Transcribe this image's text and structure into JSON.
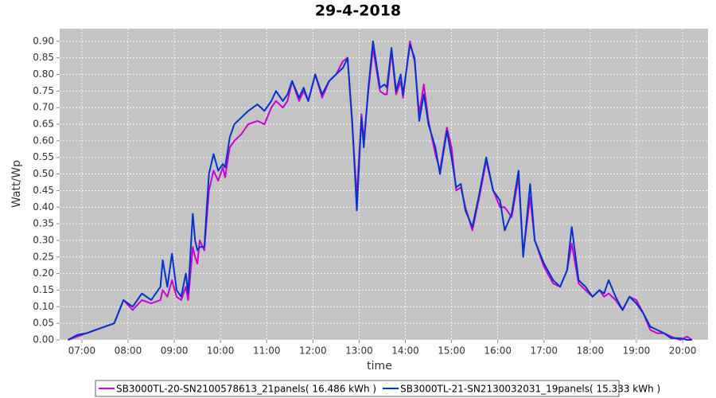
{
  "chart_data": {
    "type": "line",
    "title": "29-4-2018",
    "x_label": "time",
    "y_label": "Watt/Wp",
    "xlim": [
      6.52,
      20.55
    ],
    "ylim": [
      0,
      0.938
    ],
    "grid": true,
    "legend": "bottom",
    "xticks": [
      {
        "value": 7,
        "label": "07:00"
      },
      {
        "value": 8,
        "label": "08:00"
      },
      {
        "value": 9,
        "label": "09:00"
      },
      {
        "value": 10,
        "label": "10:00"
      },
      {
        "value": 11,
        "label": "11:00"
      },
      {
        "value": 12,
        "label": "12:00"
      },
      {
        "value": 13,
        "label": "13:00"
      },
      {
        "value": 14,
        "label": "14:00"
      },
      {
        "value": 15,
        "label": "15:00"
      },
      {
        "value": 16,
        "label": "16:00"
      },
      {
        "value": 17,
        "label": "17:00"
      },
      {
        "value": 18,
        "label": "18:00"
      },
      {
        "value": 19,
        "label": "19:00"
      },
      {
        "value": 20,
        "label": "20:00"
      }
    ],
    "yticks": [
      {
        "value": 0,
        "label": "0.00"
      },
      {
        "value": 0.05,
        "label": "0.05"
      },
      {
        "value": 0.1,
        "label": "0.10"
      },
      {
        "value": 0.15,
        "label": "0.15"
      },
      {
        "value": 0.2,
        "label": "0.20"
      },
      {
        "value": 0.25,
        "label": "0.25"
      },
      {
        "value": 0.3,
        "label": "0.30"
      },
      {
        "value": 0.35,
        "label": "0.35"
      },
      {
        "value": 0.4,
        "label": "0.40"
      },
      {
        "value": 0.45,
        "label": "0.45"
      },
      {
        "value": 0.5,
        "label": "0.50"
      },
      {
        "value": 0.55,
        "label": "0.55"
      },
      {
        "value": 0.6,
        "label": "0.60"
      },
      {
        "value": 0.65,
        "label": "0.65"
      },
      {
        "value": 0.7,
        "label": "0.70"
      },
      {
        "value": 0.75,
        "label": "0.75"
      },
      {
        "value": 0.8,
        "label": "0.80"
      },
      {
        "value": 0.85,
        "label": "0.85"
      },
      {
        "value": 0.9,
        "label": "0.90"
      }
    ],
    "x": [
      6.7,
      6.9,
      7.1,
      7.3,
      7.5,
      7.7,
      7.9,
      8.1,
      8.3,
      8.5,
      8.7,
      8.75,
      8.85,
      8.95,
      9.05,
      9.15,
      9.25,
      9.3,
      9.4,
      9.45,
      9.5,
      9.55,
      9.65,
      9.75,
      9.85,
      9.95,
      10.05,
      10.1,
      10.2,
      10.3,
      10.45,
      10.6,
      10.8,
      10.95,
      11.1,
      11.2,
      11.35,
      11.45,
      11.55,
      11.7,
      11.8,
      11.9,
      12.05,
      12.2,
      12.35,
      12.5,
      12.65,
      12.75,
      12.85,
      12.95,
      13.05,
      13.1,
      13.2,
      13.3,
      13.45,
      13.55,
      13.6,
      13.7,
      13.8,
      13.9,
      13.95,
      14.1,
      14.2,
      14.3,
      14.4,
      14.5,
      14.65,
      14.75,
      14.9,
      15.0,
      15.1,
      15.2,
      15.3,
      15.45,
      15.6,
      15.75,
      15.9,
      16.05,
      16.15,
      16.3,
      16.45,
      16.55,
      16.7,
      16.8,
      17.0,
      17.2,
      17.35,
      17.5,
      17.6,
      17.75,
      17.9,
      18.05,
      18.2,
      18.3,
      18.4,
      18.55,
      18.7,
      18.85,
      19.0,
      19.15,
      19.3,
      19.45,
      19.6,
      19.75,
      19.95,
      20.1,
      20.2
    ],
    "series": [
      {
        "name": "SB3000TL-20-SN2100578613_21panels( 16.486 kWh )",
        "color": "#cc00cc",
        "values": [
          0.0,
          0.01,
          0.02,
          0.03,
          0.04,
          0.05,
          0.12,
          0.09,
          0.12,
          0.11,
          0.12,
          0.15,
          0.13,
          0.18,
          0.13,
          0.12,
          0.16,
          0.12,
          0.28,
          0.25,
          0.23,
          0.3,
          0.27,
          0.45,
          0.51,
          0.48,
          0.52,
          0.49,
          0.58,
          0.6,
          0.62,
          0.65,
          0.66,
          0.65,
          0.7,
          0.72,
          0.7,
          0.72,
          0.78,
          0.72,
          0.75,
          0.72,
          0.8,
          0.73,
          0.78,
          0.8,
          0.84,
          0.85,
          0.65,
          0.43,
          0.68,
          0.6,
          0.75,
          0.88,
          0.75,
          0.74,
          0.74,
          0.87,
          0.74,
          0.78,
          0.73,
          0.9,
          0.84,
          0.68,
          0.77,
          0.66,
          0.56,
          0.51,
          0.64,
          0.58,
          0.45,
          0.46,
          0.4,
          0.33,
          0.43,
          0.54,
          0.45,
          0.4,
          0.4,
          0.37,
          0.49,
          0.26,
          0.43,
          0.3,
          0.22,
          0.17,
          0.16,
          0.21,
          0.29,
          0.17,
          0.15,
          0.13,
          0.15,
          0.13,
          0.14,
          0.12,
          0.09,
          0.13,
          0.12,
          0.08,
          0.03,
          0.02,
          0.02,
          0.01,
          0.0,
          0.01,
          0.0
        ]
      },
      {
        "name": "SB3000TL-21-SN2130032031_19panels( 15.333 kWh )",
        "color": "#0033cc",
        "values": [
          0.0,
          0.015,
          0.02,
          0.03,
          0.04,
          0.05,
          0.12,
          0.1,
          0.14,
          0.12,
          0.16,
          0.24,
          0.16,
          0.26,
          0.15,
          0.13,
          0.2,
          0.14,
          0.38,
          0.3,
          0.27,
          0.28,
          0.28,
          0.5,
          0.56,
          0.51,
          0.53,
          0.52,
          0.61,
          0.65,
          0.67,
          0.69,
          0.71,
          0.69,
          0.72,
          0.75,
          0.72,
          0.74,
          0.78,
          0.73,
          0.76,
          0.72,
          0.8,
          0.74,
          0.78,
          0.8,
          0.82,
          0.85,
          0.66,
          0.39,
          0.67,
          0.58,
          0.76,
          0.9,
          0.76,
          0.77,
          0.76,
          0.88,
          0.75,
          0.8,
          0.74,
          0.89,
          0.85,
          0.66,
          0.74,
          0.65,
          0.58,
          0.5,
          0.63,
          0.55,
          0.46,
          0.47,
          0.39,
          0.34,
          0.44,
          0.55,
          0.45,
          0.42,
          0.33,
          0.38,
          0.51,
          0.25,
          0.47,
          0.3,
          0.23,
          0.18,
          0.16,
          0.21,
          0.34,
          0.18,
          0.16,
          0.13,
          0.15,
          0.14,
          0.18,
          0.13,
          0.09,
          0.13,
          0.11,
          0.08,
          0.04,
          0.03,
          0.02,
          0.005,
          0.005,
          0.0,
          0.0
        ]
      }
    ]
  }
}
